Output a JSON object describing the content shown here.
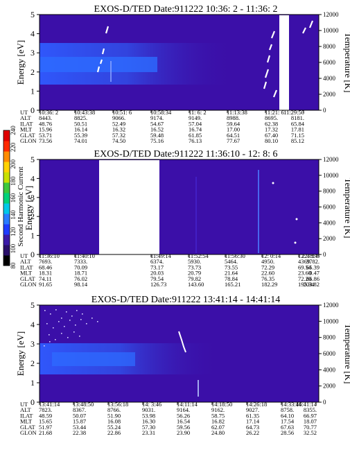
{
  "colors": {
    "background": "#3b0fa8",
    "white_gap": "#ffffff",
    "colorbar": [
      "#000000",
      "#2a0f6a",
      "#3b1aa8",
      "#1f3cff",
      "#2a7cff",
      "#00c8e8",
      "#00d27a",
      "#3cc83c",
      "#c8e000",
      "#ffd200",
      "#ff8c00",
      "#ff2a00",
      "#e00000"
    ]
  },
  "colorbar": {
    "label": "Second Harmonic Current",
    "ticks": [
      "240",
      "220",
      "200",
      "180",
      "160",
      "140",
      "120",
      "100",
      "80"
    ]
  },
  "chart_data": [
    {
      "type": "heatmap",
      "title": "EXOS-D/TED   Date:911222  10:36: 2 - 11:36: 2",
      "ylabel": "Energy [eV]",
      "ylabel_right": "Temperature [K]",
      "ylim": [
        0,
        5
      ],
      "ylim_right": [
        0,
        12000
      ],
      "yticks": [
        "0",
        "1",
        "2",
        "3",
        "4",
        "5"
      ],
      "yticks_right": [
        "0",
        "2000",
        "4000",
        "6000",
        "8000",
        "10000",
        "12000"
      ],
      "rows": [
        {
          "label": "UT",
          "values": [
            "10:36: 2",
            "10:43:38",
            "10:51: 6",
            "10:58:34",
            "11: 6: 2",
            "11:13:38",
            "11:21: 6",
            "11:29:50"
          ]
        },
        {
          "label": "ALT",
          "values": [
            "8443.",
            "8825.",
            "9066.",
            "9174.",
            "9149.",
            "8988.",
            "8695.",
            "8181."
          ]
        },
        {
          "label": "ILAT",
          "values": [
            "48.76",
            "50.51",
            "52.49",
            "54.67",
            "57.04",
            "59.64",
            "62.38",
            "65.84"
          ]
        },
        {
          "label": "MLT",
          "values": [
            "15.96",
            "16.14",
            "16.32",
            "16.52",
            "16.74",
            "17.00",
            "17.32",
            "17.81"
          ]
        },
        {
          "label": "GLAT",
          "values": [
            "53.71",
            "55.39",
            "57.32",
            "59.48",
            "61.85",
            "64.51",
            "67.40",
            "71.15"
          ]
        },
        {
          "label": "GLON",
          "values": [
            "73.56",
            "74.01",
            "74.50",
            "75.16",
            "76.13",
            "77.67",
            "80.10",
            "85.12"
          ]
        }
      ]
    },
    {
      "type": "heatmap",
      "title": "EXOS-D/TED   Date:911222  11:36:10 - 12: 8: 6",
      "ylabel": "Energy [eV]",
      "ylabel_right": "Temperature [K]",
      "ylim": [
        0,
        5
      ],
      "ylim_right": [
        0,
        12000
      ],
      "yticks": [
        "0",
        "1",
        "2",
        "3",
        "4",
        "5"
      ],
      "yticks_right": [
        "0",
        "2000",
        "4000",
        "6000",
        "8000",
        "10000",
        "12000"
      ],
      "rows": [
        {
          "label": "UT",
          "values": [
            "11:36:10",
            "11:40:10",
            "11:49:14",
            "11:52:54",
            "11:56:30",
            "12: 0:14",
            "12: 4:14",
            "12: 8: 6"
          ]
        },
        {
          "label": "ALT",
          "values": [
            "7693.",
            "7333.",
            "6374.",
            "5930.",
            "5464.",
            "4950.",
            "4369.",
            "3782."
          ]
        },
        {
          "label": "ILAT",
          "values": [
            "68.46",
            "70.09",
            "73.17",
            "73.73",
            "73.55",
            "72.29",
            "69.54",
            "65.39"
          ]
        },
        {
          "label": "MLT",
          "values": [
            "18.31",
            "18.71",
            "20.03",
            "20.79",
            "21.64",
            "22.60",
            "23.60",
            "0.47"
          ]
        },
        {
          "label": "GLAT",
          "values": [
            "74.11",
            "76.02",
            "79.54",
            "79.82",
            "78.84",
            "76.35",
            "72.20",
            "66.86"
          ]
        },
        {
          "label": "GLON",
          "values": [
            "91.65",
            "98.14",
            "126.73",
            "143.60",
            "165.21",
            "182.29",
            "195.34",
            "203.82"
          ]
        }
      ]
    },
    {
      "type": "heatmap",
      "title": "EXOS-D/TED   Date:911222  13:41:14 - 14:41:14",
      "ylabel": "Energy [eV]",
      "ylabel_right": "Temperature [K]",
      "ylim": [
        0,
        5
      ],
      "ylim_right": [
        0,
        12000
      ],
      "yticks": [
        "0",
        "1",
        "2",
        "3",
        "4",
        "5"
      ],
      "yticks_right": [
        "0",
        "2000",
        "4000",
        "6000",
        "8000",
        "10000",
        "12000"
      ],
      "rows": [
        {
          "label": "UT",
          "values": [
            "13:41:14",
            "13:48:50",
            "13:56:18",
            "14: 3:46",
            "14:11:14",
            "14:18:50",
            "14:26:18",
            "14:33:46",
            "14:41:14"
          ]
        },
        {
          "label": "ALT",
          "values": [
            "7823.",
            "8367.",
            "8766.",
            "9031.",
            "9164.",
            "9162.",
            "9027.",
            "8758.",
            "8355."
          ]
        },
        {
          "label": "ILAT",
          "values": [
            "48.59",
            "50.07",
            "51.90",
            "53.98",
            "56.26",
            "58.75",
            "61.35",
            "64.10",
            "66.97"
          ]
        },
        {
          "label": "MLT",
          "values": [
            "15.65",
            "15.87",
            "16.08",
            "16.30",
            "16.54",
            "16.82",
            "17.14",
            "17.54",
            "18.07"
          ]
        },
        {
          "label": "GLAT",
          "values": [
            "51.97",
            "53.44",
            "55.24",
            "57.30",
            "59.56",
            "62.07",
            "64.73",
            "67.63",
            "70.77"
          ]
        },
        {
          "label": "GLON",
          "values": [
            "21.68",
            "22.38",
            "22.86",
            "23.31",
            "23.90",
            "24.80",
            "26.22",
            "28.56",
            "32.52"
          ]
        }
      ]
    }
  ]
}
